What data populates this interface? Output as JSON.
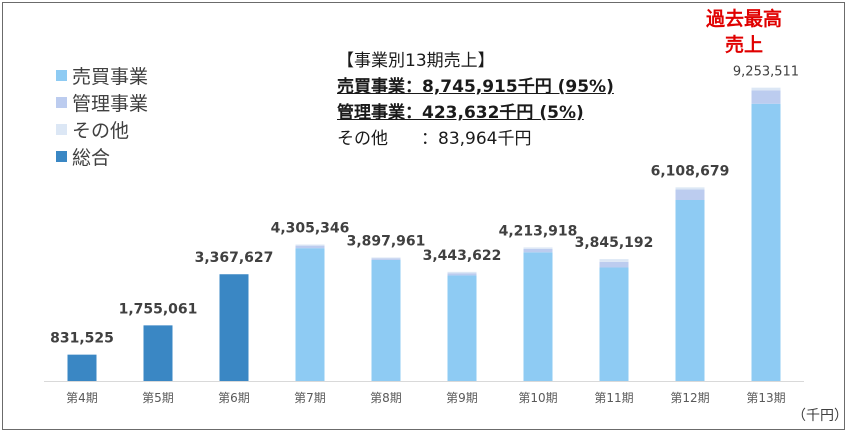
{
  "legend": {
    "items": [
      {
        "label": "売買事業",
        "color": "#8ecbf3"
      },
      {
        "label": "管理事業",
        "color": "#bcccef"
      },
      {
        "label": "その他",
        "color": "#dce7f5"
      },
      {
        "label": "総合",
        "color": "#3a87c4"
      }
    ]
  },
  "summary": {
    "heading": "【事業別13期売上】",
    "row1_name": "売買事業",
    "row1_value": "：8,745,915千円 (95%)",
    "row2_name": "管理事業",
    "row2_value": "：423,632千円 (5%)",
    "row3_name": "その他",
    "row3_value": "：83,964千円"
  },
  "highlight": {
    "line1": "過去最高",
    "line2": "売上"
  },
  "unit_label": "（千円）",
  "chart_data": {
    "type": "bar",
    "stacked": true,
    "categories": [
      "第4期",
      "第5期",
      "第6期",
      "第7期",
      "第8期",
      "第9期",
      "第10期",
      "第11期",
      "第12期",
      "第13期"
    ],
    "value_labels": [
      "831,525",
      "1,755,061",
      "3,367,627",
      "4,305,346",
      "3,897,961",
      "3,443,622",
      "4,213,918",
      "3,845,192",
      "6,108,679",
      "9,253,511"
    ],
    "totals": [
      831525,
      1755061,
      3367627,
      4305346,
      3897961,
      3443622,
      4213918,
      3845192,
      6108679,
      9253511
    ],
    "series": [
      {
        "name": "総合",
        "color": "#3a87c4",
        "values": [
          831525,
          1755061,
          3367627,
          0,
          0,
          0,
          0,
          0,
          0,
          0
        ]
      },
      {
        "name": "売買事業",
        "color": "#8ecbf3",
        "values": [
          0,
          0,
          0,
          4190000,
          3820000,
          3330000,
          4060000,
          3580000,
          5710000,
          8745915
        ]
      },
      {
        "name": "管理事業",
        "color": "#bcccef",
        "values": [
          0,
          0,
          0,
          80000,
          50000,
          70000,
          110000,
          180000,
          330000,
          423632
        ]
      },
      {
        "name": "その他",
        "color": "#dce7f5",
        "values": [
          0,
          0,
          0,
          35346,
          27961,
          43622,
          43918,
          85192,
          68679,
          83964
        ]
      }
    ],
    "ylim": [
      0,
      10000000
    ],
    "grid": false,
    "legend_position": "left"
  }
}
